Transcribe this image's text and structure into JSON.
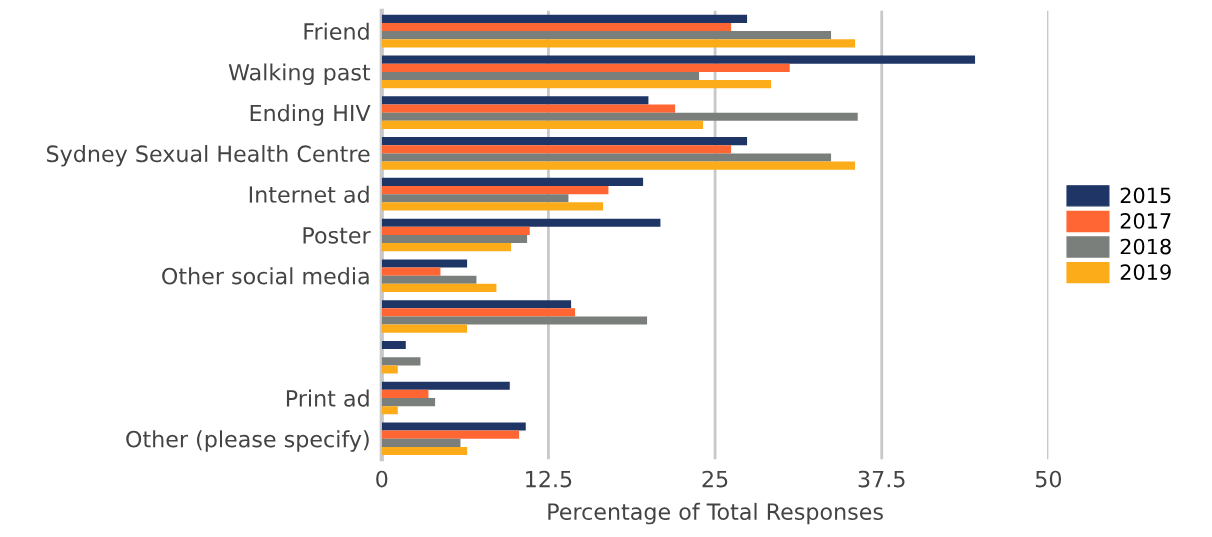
{
  "chart_data": {
    "type": "bar",
    "orientation": "horizontal",
    "xlabel": "Percentage of Total Responses",
    "categories": [
      "Friend",
      "Walking past",
      "Ending HIV",
      "Sydney Sexual Health Centre",
      "Internet ad",
      "Poster",
      "Other social media",
      null,
      null,
      "Print ad",
      "Other (please specify)"
    ],
    "series": [
      {
        "name": "2015",
        "color": "#1f3566",
        "values": [
          27.4,
          44.5,
          20.0,
          27.4,
          19.6,
          20.9,
          6.4,
          14.2,
          1.8,
          9.6,
          10.8
        ]
      },
      {
        "name": "2017",
        "color": "#ff6633",
        "values": [
          26.2,
          30.6,
          22.0,
          26.2,
          17.0,
          11.1,
          4.4,
          14.5,
          0,
          3.5,
          10.3
        ]
      },
      {
        "name": "2018",
        "color": "#7a7f7b",
        "values": [
          33.7,
          23.8,
          35.7,
          33.7,
          14.0,
          10.9,
          7.1,
          19.9,
          2.9,
          4.0,
          5.9
        ]
      },
      {
        "name": "2019",
        "color": "#fbac18",
        "values": [
          35.5,
          29.2,
          24.1,
          35.5,
          16.6,
          9.7,
          8.6,
          6.4,
          1.2,
          1.2,
          6.4
        ]
      }
    ],
    "xlim": [
      0,
      50
    ],
    "xticks": [
      0,
      12.5,
      25,
      37.5,
      50
    ],
    "grid": "x",
    "legend": "right"
  }
}
